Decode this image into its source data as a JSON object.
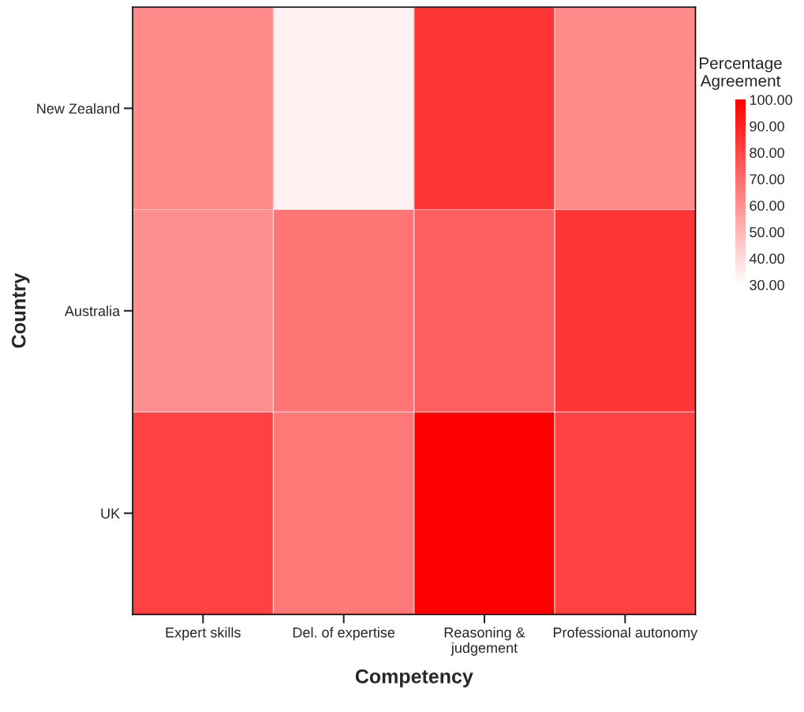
{
  "chart_data": {
    "type": "heatmap",
    "xlabel": "Competency",
    "ylabel": "Country",
    "clabel": "Percentage\nAgreement",
    "categories": [
      "Expert skills",
      "Del. of expertise",
      "Reasoning &\njudgement",
      "Professional autonomy"
    ],
    "y_categories": [
      "New Zealand",
      "Australia",
      "UK"
    ],
    "cells": [
      [
        62,
        34,
        85,
        62
      ],
      [
        61,
        68,
        74,
        85
      ],
      [
        82,
        67,
        100,
        82
      ]
    ],
    "clim": [
      30,
      100
    ],
    "cticks": [
      {
        "value": 30,
        "label": "30.00"
      },
      {
        "value": 40,
        "label": "40.00"
      },
      {
        "value": 50,
        "label": "50.00"
      },
      {
        "value": 60,
        "label": "60.00"
      },
      {
        "value": 70,
        "label": "70.00"
      },
      {
        "value": 80,
        "label": "80.00"
      },
      {
        "value": 90,
        "label": "90.00"
      },
      {
        "value": 100,
        "label": "100.00"
      }
    ]
  }
}
